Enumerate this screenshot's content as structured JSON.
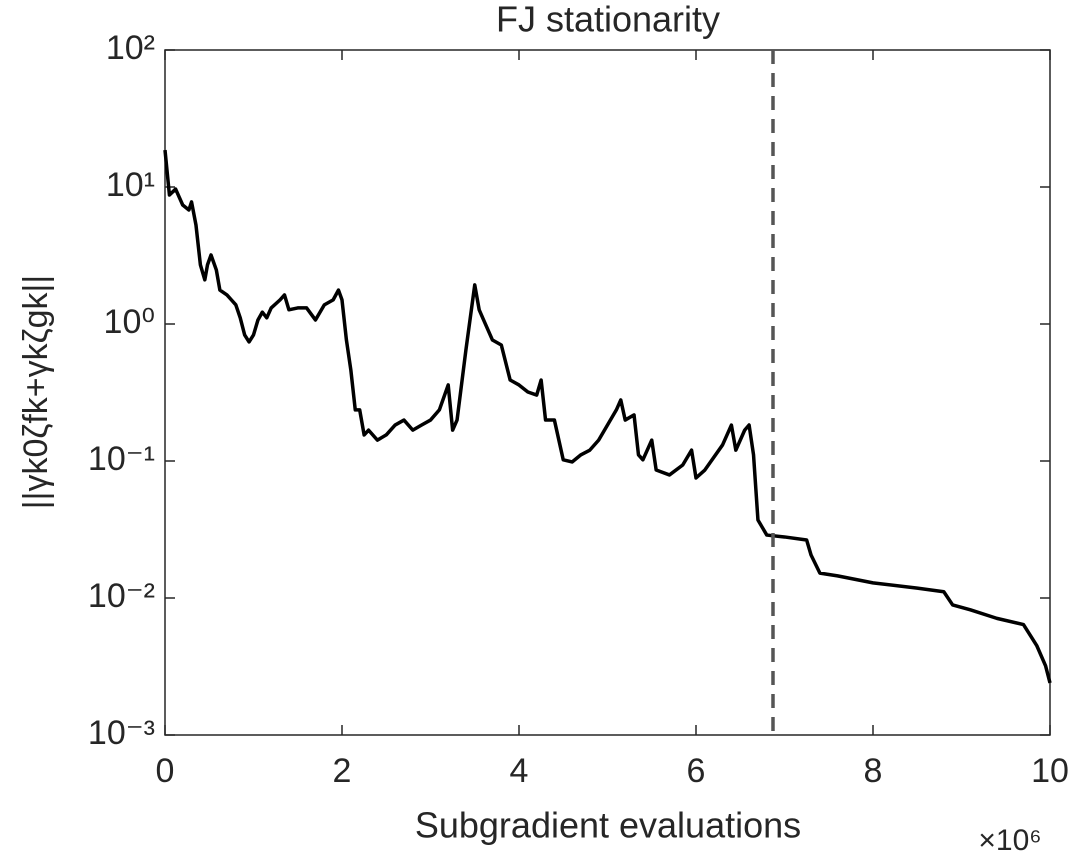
{
  "chart_data": {
    "type": "line",
    "title": "FJ stationarity",
    "x_label": "Subgradient evaluations",
    "x_multiplier": "×10⁶",
    "y_label": "||γk0ζfk+γkζgk||",
    "color": "#000000",
    "x": [
      0,
      0.05,
      0.12,
      0.2,
      0.27,
      0.3,
      0.35,
      0.4,
      0.45,
      0.48,
      0.52,
      0.58,
      0.62,
      0.7,
      0.75,
      0.8,
      0.85,
      0.9,
      0.95,
      1.0,
      1.05,
      1.1,
      1.15,
      1.2,
      1.3,
      1.35,
      1.4,
      1.5,
      1.6,
      1.7,
      1.8,
      1.9,
      1.96,
      2.0,
      2.05,
      2.1,
      2.15,
      2.2,
      2.25,
      2.3,
      2.4,
      2.5,
      2.6,
      2.7,
      2.8,
      2.9,
      3.0,
      3.1,
      3.2,
      3.25,
      3.3,
      3.4,
      3.5,
      3.55,
      3.6,
      3.7,
      3.8,
      3.9,
      4.0,
      4.1,
      4.2,
      4.25,
      4.3,
      4.4,
      4.5,
      4.6,
      4.7,
      4.8,
      4.9,
      5.0,
      5.1,
      5.15,
      5.2,
      5.3,
      5.35,
      5.4,
      5.5,
      5.55,
      5.7,
      5.85,
      5.95,
      6.0,
      6.1,
      6.3,
      6.4,
      6.45,
      6.55,
      6.6,
      6.65,
      6.7,
      6.8,
      7.0,
      7.25,
      7.3,
      7.4,
      7.6,
      8.0,
      8.5,
      8.8,
      8.9,
      9.1,
      9.4,
      9.7,
      9.85,
      9.95,
      10
    ],
    "values": [
      18.6,
      8.74,
      9.66,
      7.39,
      6.8,
      7.78,
      5.28,
      2.7,
      2.1,
      2.7,
      3.19,
      2.48,
      1.77,
      1.63,
      1.5,
      1.38,
      1.11,
      0.832,
      0.74,
      0.832,
      1.07,
      1.22,
      1.11,
      1.31,
      1.5,
      1.63,
      1.27,
      1.31,
      1.31,
      1.07,
      1.38,
      1.5,
      1.77,
      1.5,
      0.764,
      0.461,
      0.236,
      0.236,
      0.155,
      0.168,
      0.142,
      0.155,
      0.183,
      0.199,
      0.168,
      0.183,
      0.199,
      0.236,
      0.359,
      0.168,
      0.199,
      0.645,
      1.93,
      1.27,
      1.07,
      0.764,
      0.703,
      0.39,
      0.359,
      0.319,
      0.303,
      0.39,
      0.199,
      0.199,
      0.102,
      0.0984,
      0.111,
      0.12,
      0.142,
      0.183,
      0.236,
      0.279,
      0.199,
      0.217,
      0.111,
      0.102,
      0.142,
      0.0859,
      0.0791,
      0.0935,
      0.12,
      0.0752,
      0.0859,
      0.131,
      0.183,
      0.12,
      0.168,
      0.183,
      0.111,
      0.0371,
      0.0288,
      0.0279,
      0.0265,
      0.0206,
      0.0152,
      0.0145,
      0.0129,
      0.0118,
      0.0111,
      0.0089,
      0.0082,
      0.0071,
      0.0064,
      0.0045,
      0.0032,
      0.0024
    ],
    "reference_x": 6.87,
    "reference_color": "#555555",
    "xlim": [
      0,
      10
    ],
    "xticks": [
      0,
      2,
      4,
      6,
      8,
      10
    ],
    "ylim": [
      0.001,
      100
    ],
    "ylog": true,
    "yticks": [
      {
        "value": 0.001,
        "label": "10⁻³"
      },
      {
        "value": 0.01,
        "label": "10⁻²"
      },
      {
        "value": 0.1,
        "label": "10⁻¹"
      },
      {
        "value": 1,
        "label": "10⁰"
      },
      {
        "value": 10,
        "label": "10¹"
      },
      {
        "value": 100,
        "label": "10²"
      }
    ]
  }
}
